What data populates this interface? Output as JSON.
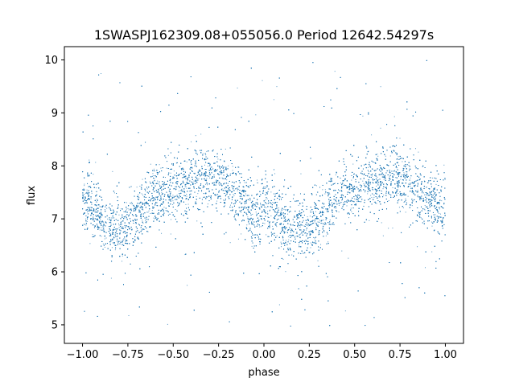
{
  "chart_data": {
    "type": "scatter",
    "title": "1SWASPJ162309.08+055056.0 Period 12642.54297s",
    "xlabel": "phase",
    "ylabel": "flux",
    "xlim": [
      -1.1,
      1.1
    ],
    "ylim": [
      4.65,
      10.25
    ],
    "xticks": [
      -1.0,
      -0.75,
      -0.5,
      -0.25,
      0.0,
      0.25,
      0.5,
      0.75,
      1.0
    ],
    "xtick_labels": [
      "−1.00",
      "−0.75",
      "−0.50",
      "−0.25",
      "0.00",
      "0.25",
      "0.50",
      "0.75",
      "1.00"
    ],
    "yticks": [
      5,
      6,
      7,
      8,
      9,
      10
    ],
    "ytick_labels": [
      "5",
      "6",
      "7",
      "8",
      "9",
      "10"
    ],
    "grid": false,
    "series": [
      {
        "color": "#1f77b4",
        "phase_flux_trend": [
          {
            "x": -1.0,
            "y": 7.3
          },
          {
            "x": -0.8,
            "y": 6.8
          },
          {
            "x": -0.55,
            "y": 7.5
          },
          {
            "x": -0.3,
            "y": 7.8
          },
          {
            "x": 0.0,
            "y": 7.1
          },
          {
            "x": 0.2,
            "y": 6.8
          },
          {
            "x": 0.45,
            "y": 7.5
          },
          {
            "x": 0.7,
            "y": 7.8
          },
          {
            "x": 1.0,
            "y": 7.2
          }
        ],
        "scatter_sigma": 0.28,
        "outlier_range": [
          4.9,
          10.0
        ]
      }
    ]
  }
}
